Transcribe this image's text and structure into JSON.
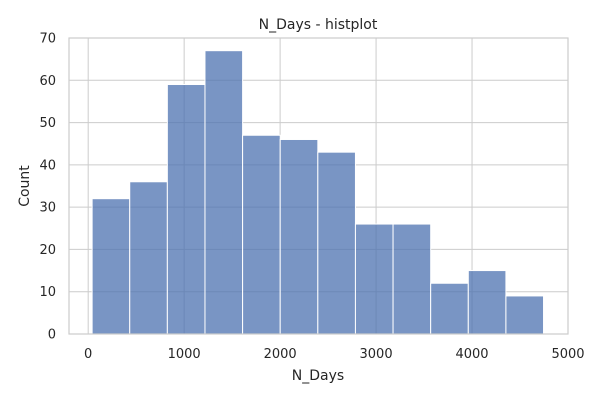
{
  "chart_data": {
    "type": "bar",
    "title": "N_Days - histplot",
    "xlabel": "N_Days",
    "ylabel": "Count",
    "xlim": [
      -200,
      5000
    ],
    "ylim": [
      0,
      70
    ],
    "xticks": [
      0,
      1000,
      2000,
      3000,
      4000,
      5000
    ],
    "yticks": [
      0,
      10,
      20,
      30,
      40,
      50,
      60,
      70
    ],
    "grid": true,
    "bar_color": "#4c72b0",
    "bins": [
      {
        "x0": 41,
        "x1": 433,
        "count": 32
      },
      {
        "x0": 433,
        "x1": 825,
        "count": 36
      },
      {
        "x0": 825,
        "x1": 1217,
        "count": 59
      },
      {
        "x0": 1217,
        "x1": 1609,
        "count": 67
      },
      {
        "x0": 1609,
        "x1": 2001,
        "count": 47
      },
      {
        "x0": 2001,
        "x1": 2393,
        "count": 46
      },
      {
        "x0": 2393,
        "x1": 2785,
        "count": 43
      },
      {
        "x0": 2785,
        "x1": 3177,
        "count": 26
      },
      {
        "x0": 3177,
        "x1": 3569,
        "count": 26
      },
      {
        "x0": 3569,
        "x1": 3961,
        "count": 12
      },
      {
        "x0": 3961,
        "x1": 4353,
        "count": 15
      },
      {
        "x0": 4353,
        "x1": 4745,
        "count": 9
      }
    ]
  }
}
